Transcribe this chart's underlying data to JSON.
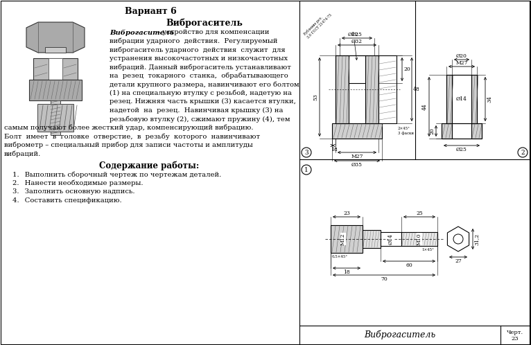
{
  "bg_color": "#ffffff",
  "title": "Вариант 6",
  "section_title": "Виброгаситель",
  "para_lines_right": [
    [
      "bold_italic",
      "Виброгаситель",
      " – устройство для компенсации"
    ],
    [
      "normal",
      "вибрации ударного  действия.  Регулируемый"
    ],
    [
      "normal",
      "виброгаситель ударного  действия  служит  для"
    ],
    [
      "normal",
      "устранения высокочастотных и низкочастотных"
    ],
    [
      "normal",
      "вибраций. Данный виброгаситель устанавливают"
    ],
    [
      "normal",
      "на  резец  токарного  станка,  обрабатывающего"
    ],
    [
      "normal",
      "детали крупного размера, навинчивают его болтом"
    ],
    [
      "normal",
      "(1) на специальную втулку с резьбой, надетую на"
    ],
    [
      "normal",
      "резец. Нижняя часть крышки (3) касается втулки,"
    ],
    [
      "normal",
      "надетой  на  резец.  Навинчивая крышку (3) на"
    ],
    [
      "normal",
      "резьбовую втулку (2), сжимают пружину (4), тем"
    ]
  ],
  "para_lines_full": [
    "самым получают более жесткий удар, компенсирующий вибрацию.",
    "Болт  имеет  в  головке  отверстие,  в  резьбу  которого  навинчивают",
    "виброметр – специальный прибор для записи частоты и амплитуды",
    "вибраций."
  ],
  "content_title": "Содержание работы:",
  "list_items": [
    "Выполнить сборочный чертеж по чертежам деталей.",
    "Нанести необходимые размеры.",
    "Заполнить основную надпись.",
    "Составить спецификацию."
  ],
  "footer_title": "Виброгаситель",
  "footer_num_line1": "Черт.",
  "footer_num_line2": "23"
}
